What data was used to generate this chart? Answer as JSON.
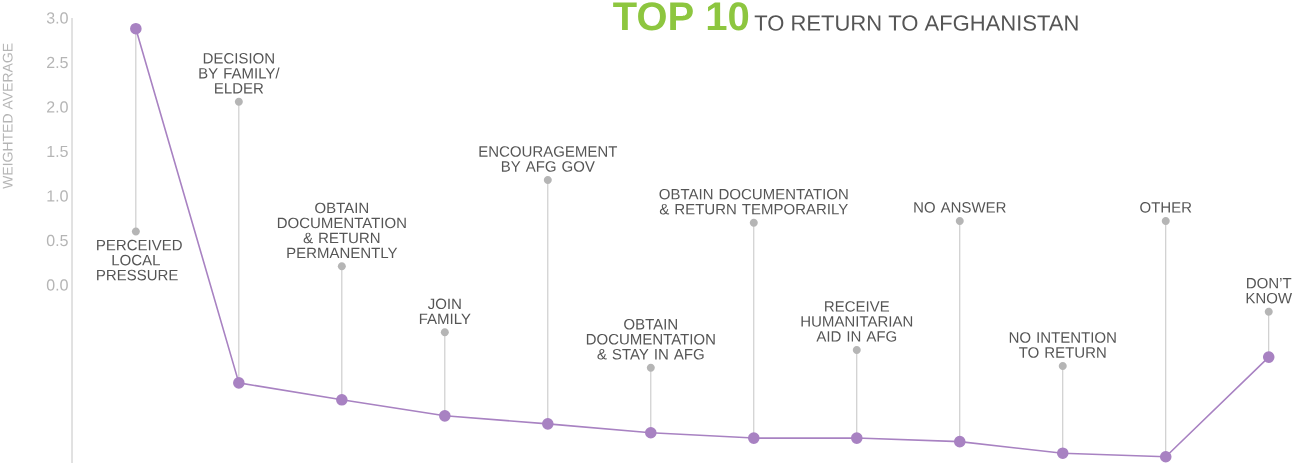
{
  "chart_data": {
    "type": "line",
    "title": "TOP 10",
    "subtitle": "TO RETURN TO AFGHANISTAN",
    "ylabel": "WEIGHTED AVERAGE",
    "categories": [
      "PERCEIVED LOCAL PRESSURE",
      "DECISION BY FAMILY/ ELDER",
      "OBTAIN DOCUMENTATION & RETURN PERMANENTLY",
      "JOIN FAMILY",
      "ENCOURAGEMENT BY AFG GOV",
      "OBTAIN DOCUMENTATION & STAY IN AFG",
      "OBTAIN DOCUMENTATION & RETURN TEMPORARILY",
      "RECEIVE HUMANITARIAN AID IN AFG",
      "NO ANSWER",
      "NO INTENTION TO RETURN",
      "OTHER",
      "DON’T KNOW"
    ],
    "values": [
      2.88,
      -1.1,
      -1.29,
      -1.47,
      -1.56,
      -1.66,
      -1.72,
      -1.72,
      -1.76,
      -1.89,
      -1.93,
      -0.81
    ],
    "color": "#a882c2",
    "marker": "circle",
    "ylim": [
      -2.0,
      3.0
    ],
    "yticks": [
      {
        "value": 0,
        "label": "0.0"
      },
      0.5,
      {
        "value": 1,
        "label": "1.0"
      },
      1.5,
      {
        "value": 2,
        "label": "2.0"
      },
      2.5,
      {
        "value": 3,
        "label": "3.0"
      }
    ]
  }
}
